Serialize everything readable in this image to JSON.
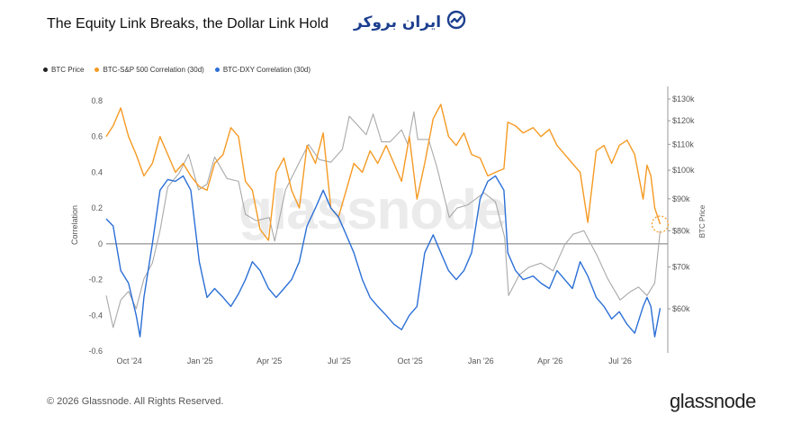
{
  "header": {
    "title": "The Equity Link Breaks, the Dollar Link Hold",
    "brand_logo_text": "ایران بروکر"
  },
  "watermark": "glassnode",
  "footer": {
    "copyright": "© 2026 Glassnode. All Rights Reserved.",
    "brand": "glassnode"
  },
  "colors": {
    "btc": "#a9a9a9",
    "spx": "#f59a23",
    "dxy": "#2b6fd6",
    "brand_blue": "#1d3f8f"
  },
  "chart_data": {
    "type": "line",
    "title": "The Equity Link Breaks, the Dollar Link Hold",
    "ylabel_left": "Correlation",
    "ylabel_right": "BTC Price",
    "ylim_left": [
      -0.6,
      0.8
    ],
    "ylim_right": [
      50000,
      130000
    ],
    "right_scale": "log",
    "yticks_left": [
      "0.8",
      "0.6",
      "0.4",
      "0.2",
      "0",
      "-0.2",
      "-0.4",
      "-0.6"
    ],
    "yticks_right": [
      "$130k",
      "$120k",
      "$110k",
      "$100k",
      "$90k",
      "$80k",
      "$70k",
      "$60k"
    ],
    "xticks": [
      "Oct '24",
      "Jan '25",
      "Apr '25",
      "Jul '25",
      "Oct '25",
      "Jan '26",
      "Apr '26",
      "Jul '26"
    ],
    "xlim": [
      "2024-09-01",
      "2026-09-01"
    ],
    "legend": [
      "BTC Price",
      "BTC-S&P 500 Correlation (30d)",
      "BTC-DXY Correlation (30d)"
    ],
    "legend_position": "top-left",
    "grid": false,
    "series": [
      {
        "name": "BTC Price",
        "axis": "right",
        "points": [
          [
            "2024-09-01",
            63000
          ],
          [
            "2024-09-10",
            56000
          ],
          [
            "2024-09-20",
            62000
          ],
          [
            "2024-09-30",
            64000
          ],
          [
            "2024-10-10",
            60000
          ],
          [
            "2024-10-20",
            67000
          ],
          [
            "2024-10-31",
            71000
          ],
          [
            "2024-11-10",
            80000
          ],
          [
            "2024-11-20",
            94000
          ],
          [
            "2024-12-05",
            99000
          ],
          [
            "2024-12-17",
            106000
          ],
          [
            "2024-12-30",
            93000
          ],
          [
            "2025-01-10",
            95000
          ],
          [
            "2025-01-20",
            105000
          ],
          [
            "2025-02-05",
            97000
          ],
          [
            "2025-02-20",
            96000
          ],
          [
            "2025-03-01",
            85000
          ],
          [
            "2025-03-15",
            83000
          ],
          [
            "2025-04-01",
            84000
          ],
          [
            "2025-04-08",
            77000
          ],
          [
            "2025-04-22",
            93000
          ],
          [
            "2025-05-10",
            103000
          ],
          [
            "2025-05-22",
            110000
          ],
          [
            "2025-06-05",
            104000
          ],
          [
            "2025-06-20",
            103000
          ],
          [
            "2025-07-05",
            108000
          ],
          [
            "2025-07-14",
            122000
          ],
          [
            "2025-07-25",
            118000
          ],
          [
            "2025-08-05",
            114000
          ],
          [
            "2025-08-14",
            123000
          ],
          [
            "2025-08-25",
            111000
          ],
          [
            "2025-09-05",
            111000
          ],
          [
            "2025-09-20",
            116000
          ],
          [
            "2025-09-28",
            110000
          ],
          [
            "2025-10-06",
            124000
          ],
          [
            "2025-10-11",
            112000
          ],
          [
            "2025-10-25",
            112000
          ],
          [
            "2025-11-05",
            101000
          ],
          [
            "2025-11-21",
            84000
          ],
          [
            "2025-12-01",
            87000
          ],
          [
            "2025-12-15",
            88000
          ],
          [
            "2026-01-05",
            92000
          ],
          [
            "2026-01-20",
            89000
          ],
          [
            "2026-02-01",
            78000
          ],
          [
            "2026-02-06",
            63000
          ],
          [
            "2026-02-20",
            68000
          ],
          [
            "2026-03-05",
            70000
          ],
          [
            "2026-03-20",
            71000
          ],
          [
            "2026-04-05",
            69000
          ],
          [
            "2026-04-20",
            76000
          ],
          [
            "2026-05-01",
            79000
          ],
          [
            "2026-05-15",
            80000
          ],
          [
            "2026-06-01",
            73000
          ],
          [
            "2026-06-15",
            67000
          ],
          [
            "2026-07-01",
            62000
          ],
          [
            "2026-07-15",
            64000
          ],
          [
            "2026-07-25",
            65000
          ],
          [
            "2026-08-05",
            63000
          ],
          [
            "2026-08-15",
            66000
          ],
          [
            "2026-08-22",
            80000
          ]
        ]
      },
      {
        "name": "BTC-S&P 500 Correlation (30d)",
        "axis": "left",
        "points": [
          [
            "2024-09-01",
            0.6
          ],
          [
            "2024-09-10",
            0.66
          ],
          [
            "2024-09-20",
            0.76
          ],
          [
            "2024-09-30",
            0.6
          ],
          [
            "2024-10-10",
            0.5
          ],
          [
            "2024-10-20",
            0.38
          ],
          [
            "2024-10-31",
            0.45
          ],
          [
            "2024-11-10",
            0.6
          ],
          [
            "2024-11-20",
            0.5
          ],
          [
            "2024-11-30",
            0.4
          ],
          [
            "2024-12-10",
            0.45
          ],
          [
            "2024-12-20",
            0.38
          ],
          [
            "2024-12-31",
            0.32
          ],
          [
            "2025-01-10",
            0.3
          ],
          [
            "2025-01-20",
            0.45
          ],
          [
            "2025-01-31",
            0.5
          ],
          [
            "2025-02-10",
            0.65
          ],
          [
            "2025-02-20",
            0.6
          ],
          [
            "2025-03-01",
            0.35
          ],
          [
            "2025-03-10",
            0.3
          ],
          [
            "2025-03-20",
            0.08
          ],
          [
            "2025-03-31",
            0.02
          ],
          [
            "2025-04-10",
            0.4
          ],
          [
            "2025-04-20",
            0.48
          ],
          [
            "2025-04-30",
            0.3
          ],
          [
            "2025-05-10",
            0.2
          ],
          [
            "2025-05-20",
            0.55
          ],
          [
            "2025-05-31",
            0.45
          ],
          [
            "2025-06-10",
            0.62
          ],
          [
            "2025-06-20",
            0.2
          ],
          [
            "2025-06-30",
            0.15
          ],
          [
            "2025-07-10",
            0.3
          ],
          [
            "2025-07-20",
            0.45
          ],
          [
            "2025-07-31",
            0.4
          ],
          [
            "2025-08-10",
            0.52
          ],
          [
            "2025-08-20",
            0.45
          ],
          [
            "2025-08-31",
            0.55
          ],
          [
            "2025-09-10",
            0.45
          ],
          [
            "2025-09-20",
            0.35
          ],
          [
            "2025-09-30",
            0.6
          ],
          [
            "2025-10-10",
            0.25
          ],
          [
            "2025-10-20",
            0.45
          ],
          [
            "2025-10-31",
            0.7
          ],
          [
            "2025-11-10",
            0.78
          ],
          [
            "2025-11-20",
            0.6
          ],
          [
            "2025-11-30",
            0.55
          ],
          [
            "2025-12-10",
            0.62
          ],
          [
            "2025-12-20",
            0.5
          ],
          [
            "2025-12-31",
            0.48
          ],
          [
            "2026-01-10",
            0.38
          ],
          [
            "2026-01-20",
            0.4
          ],
          [
            "2026-01-31",
            0.42
          ],
          [
            "2026-02-05",
            0.68
          ],
          [
            "2026-02-15",
            0.66
          ],
          [
            "2026-02-25",
            0.62
          ],
          [
            "2026-03-10",
            0.65
          ],
          [
            "2026-03-20",
            0.6
          ],
          [
            "2026-03-31",
            0.64
          ],
          [
            "2026-04-10",
            0.55
          ],
          [
            "2026-04-20",
            0.5
          ],
          [
            "2026-04-30",
            0.45
          ],
          [
            "2026-05-10",
            0.4
          ],
          [
            "2026-05-20",
            0.12
          ],
          [
            "2026-05-31",
            0.52
          ],
          [
            "2026-06-10",
            0.55
          ],
          [
            "2026-06-20",
            0.45
          ],
          [
            "2026-06-30",
            0.55
          ],
          [
            "2026-07-10",
            0.58
          ],
          [
            "2026-07-20",
            0.5
          ],
          [
            "2026-07-31",
            0.25
          ],
          [
            "2026-08-05",
            0.44
          ],
          [
            "2026-08-10",
            0.38
          ],
          [
            "2026-08-15",
            0.2
          ],
          [
            "2026-08-22",
            0.11
          ]
        ]
      },
      {
        "name": "BTC-DXY Correlation (30d)",
        "axis": "left",
        "points": [
          [
            "2024-09-01",
            0.14
          ],
          [
            "2024-09-10",
            0.1
          ],
          [
            "2024-09-20",
            -0.15
          ],
          [
            "2024-09-30",
            -0.22
          ],
          [
            "2024-10-10",
            -0.4
          ],
          [
            "2024-10-15",
            -0.52
          ],
          [
            "2024-10-20",
            -0.3
          ],
          [
            "2024-10-31",
            0.0
          ],
          [
            "2024-11-10",
            0.3
          ],
          [
            "2024-11-20",
            0.36
          ],
          [
            "2024-11-30",
            0.35
          ],
          [
            "2024-12-10",
            0.38
          ],
          [
            "2024-12-20",
            0.3
          ],
          [
            "2024-12-31",
            -0.1
          ],
          [
            "2025-01-10",
            -0.3
          ],
          [
            "2025-01-20",
            -0.25
          ],
          [
            "2025-01-31",
            -0.3
          ],
          [
            "2025-02-10",
            -0.35
          ],
          [
            "2025-02-20",
            -0.28
          ],
          [
            "2025-03-01",
            -0.2
          ],
          [
            "2025-03-10",
            -0.1
          ],
          [
            "2025-03-20",
            -0.15
          ],
          [
            "2025-03-31",
            -0.25
          ],
          [
            "2025-04-10",
            -0.3
          ],
          [
            "2025-04-20",
            -0.25
          ],
          [
            "2025-04-30",
            -0.2
          ],
          [
            "2025-05-10",
            -0.1
          ],
          [
            "2025-05-20",
            0.1
          ],
          [
            "2025-05-31",
            0.2
          ],
          [
            "2025-06-10",
            0.3
          ],
          [
            "2025-06-20",
            0.2
          ],
          [
            "2025-06-30",
            0.15
          ],
          [
            "2025-07-10",
            0.05
          ],
          [
            "2025-07-20",
            -0.05
          ],
          [
            "2025-07-31",
            -0.2
          ],
          [
            "2025-08-10",
            -0.3
          ],
          [
            "2025-08-20",
            -0.35
          ],
          [
            "2025-08-31",
            -0.4
          ],
          [
            "2025-09-10",
            -0.45
          ],
          [
            "2025-09-20",
            -0.48
          ],
          [
            "2025-09-30",
            -0.4
          ],
          [
            "2025-10-10",
            -0.35
          ],
          [
            "2025-10-20",
            -0.05
          ],
          [
            "2025-10-31",
            0.05
          ],
          [
            "2025-11-10",
            -0.05
          ],
          [
            "2025-11-20",
            -0.15
          ],
          [
            "2025-11-30",
            -0.2
          ],
          [
            "2025-12-10",
            -0.15
          ],
          [
            "2025-12-20",
            -0.05
          ],
          [
            "2025-12-31",
            0.25
          ],
          [
            "2026-01-10",
            0.35
          ],
          [
            "2026-01-20",
            0.38
          ],
          [
            "2026-01-31",
            0.3
          ],
          [
            "2026-02-05",
            -0.05
          ],
          [
            "2026-02-15",
            -0.15
          ],
          [
            "2026-02-25",
            -0.2
          ],
          [
            "2026-03-10",
            -0.18
          ],
          [
            "2026-03-20",
            -0.22
          ],
          [
            "2026-03-31",
            -0.25
          ],
          [
            "2026-04-10",
            -0.15
          ],
          [
            "2026-04-20",
            -0.2
          ],
          [
            "2026-04-30",
            -0.25
          ],
          [
            "2026-05-10",
            -0.1
          ],
          [
            "2026-05-20",
            -0.18
          ],
          [
            "2026-05-31",
            -0.3
          ],
          [
            "2026-06-10",
            -0.35
          ],
          [
            "2026-06-20",
            -0.42
          ],
          [
            "2026-06-30",
            -0.38
          ],
          [
            "2026-07-10",
            -0.45
          ],
          [
            "2026-07-20",
            -0.5
          ],
          [
            "2026-07-31",
            -0.35
          ],
          [
            "2026-08-05",
            -0.3
          ],
          [
            "2026-08-10",
            -0.35
          ],
          [
            "2026-08-15",
            -0.52
          ],
          [
            "2026-08-22",
            -0.36
          ]
        ]
      }
    ]
  }
}
